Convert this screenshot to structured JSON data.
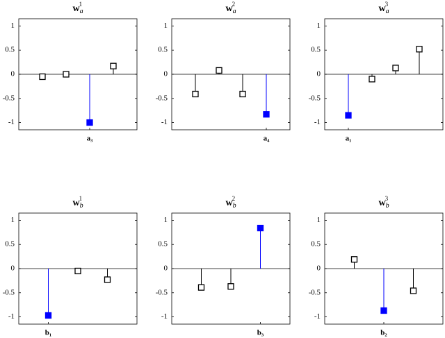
{
  "chart_data": [
    {
      "type": "stem",
      "title": {
        "base": "w",
        "sub": "a",
        "sup": "1"
      },
      "x": [
        1,
        2,
        3,
        4
      ],
      "values": [
        -0.05,
        0.0,
        -1.0,
        0.17
      ],
      "colors": [
        "#000000",
        "#000000",
        "#0000ff",
        "#000000"
      ],
      "filled": [
        false,
        false,
        true,
        false
      ],
      "xlim": [
        0,
        5
      ],
      "xticks": [
        {
          "value": 3,
          "label": "a₃"
        }
      ],
      "ylim": [
        -1.15,
        1.15
      ],
      "yticks": [
        -1,
        -0.5,
        0,
        0.5,
        1
      ]
    },
    {
      "type": "stem",
      "title": {
        "base": "w",
        "sub": "a",
        "sup": "2"
      },
      "x": [
        1,
        2,
        3,
        4
      ],
      "values": [
        -0.41,
        0.08,
        -0.41,
        -0.83
      ],
      "colors": [
        "#000000",
        "#000000",
        "#000000",
        "#0000ff"
      ],
      "filled": [
        false,
        false,
        false,
        true
      ],
      "xlim": [
        0,
        5
      ],
      "xticks": [
        {
          "value": 4,
          "label": "a₄"
        }
      ],
      "ylim": [
        -1.15,
        1.15
      ],
      "yticks": [
        -1,
        -0.5,
        0,
        0.5,
        1
      ]
    },
    {
      "type": "stem",
      "title": {
        "base": "w",
        "sub": "a",
        "sup": "3"
      },
      "x": [
        1,
        2,
        3,
        4
      ],
      "values": [
        -0.85,
        -0.1,
        0.13,
        0.52
      ],
      "colors": [
        "#0000ff",
        "#000000",
        "#000000",
        "#000000"
      ],
      "filled": [
        true,
        false,
        false,
        false
      ],
      "xlim": [
        0,
        5
      ],
      "xticks": [
        {
          "value": 1,
          "label": "a₁"
        }
      ],
      "ylim": [
        -1.15,
        1.15
      ],
      "yticks": [
        -1,
        -0.5,
        0,
        0.5,
        1
      ]
    },
    {
      "type": "stem",
      "title": {
        "base": "w",
        "sub": "b",
        "sup": "1"
      },
      "x": [
        1,
        2,
        3
      ],
      "values": [
        -0.97,
        -0.05,
        -0.23
      ],
      "colors": [
        "#0000ff",
        "#000000",
        "#000000"
      ],
      "filled": [
        true,
        false,
        false
      ],
      "xlim": [
        0,
        4
      ],
      "xticks": [
        {
          "value": 1,
          "label": "b₁"
        }
      ],
      "ylim": [
        -1.15,
        1.15
      ],
      "yticks": [
        -1,
        -0.5,
        0,
        0.5,
        1
      ]
    },
    {
      "type": "stem",
      "title": {
        "base": "w",
        "sub": "b",
        "sup": "2"
      },
      "x": [
        1,
        2,
        3
      ],
      "values": [
        -0.39,
        -0.37,
        0.84
      ],
      "colors": [
        "#000000",
        "#000000",
        "#0000ff"
      ],
      "filled": [
        false,
        false,
        true
      ],
      "xlim": [
        0,
        4
      ],
      "xticks": [
        {
          "value": 3,
          "label": "b₃"
        }
      ],
      "ylim": [
        -1.15,
        1.15
      ],
      "yticks": [
        -1,
        -0.5,
        0,
        0.5,
        1
      ]
    },
    {
      "type": "stem",
      "title": {
        "base": "w",
        "sub": "b",
        "sup": "3"
      },
      "x": [
        1,
        2,
        3
      ],
      "values": [
        0.19,
        -0.87,
        -0.46
      ],
      "colors": [
        "#000000",
        "#0000ff",
        "#000000"
      ],
      "filled": [
        false,
        true,
        false
      ],
      "xlim": [
        0,
        4
      ],
      "xticks": [
        {
          "value": 2,
          "label": "b₂"
        }
      ],
      "ylim": [
        -1.15,
        1.15
      ],
      "yticks": [
        -1,
        -0.5,
        0,
        0.5,
        1
      ]
    }
  ]
}
